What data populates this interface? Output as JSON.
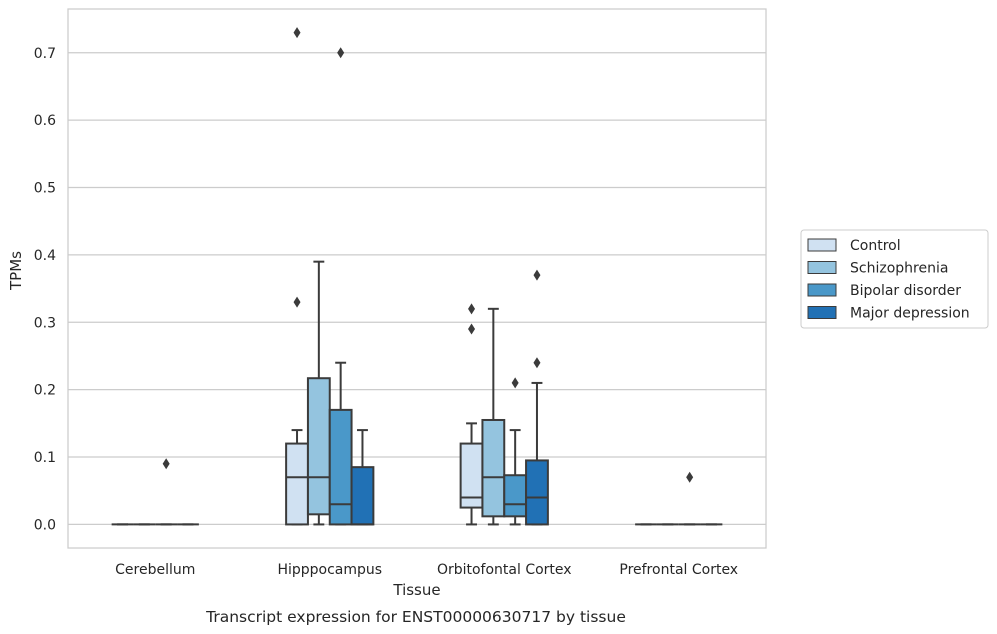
{
  "chart_data": {
    "type": "box",
    "caption": "Transcript expression for ENST00000630717 by tissue",
    "xlabel": "Tissue",
    "ylabel": "TPMs",
    "ylim": [
      -0.035,
      0.765
    ],
    "yticks": [
      0.0,
      0.1,
      0.2,
      0.3,
      0.4,
      0.5,
      0.6,
      0.7
    ],
    "ytick_labels": [
      "0.0",
      "0.1",
      "0.2",
      "0.3",
      "0.4",
      "0.5",
      "0.6",
      "0.7"
    ],
    "grid": "horizontal",
    "legend_position": "right",
    "categories": [
      "Cerebellum",
      "Hipppocampus",
      "Orbitofontal Cortex",
      "Prefrontal Cortex"
    ],
    "series": [
      {
        "name": "Control",
        "color": "#d0e1f2",
        "boxes": [
          {
            "whislo": 0.0,
            "q1": 0.0,
            "med": 0.0,
            "q3": 0.0,
            "whishi": 0.0,
            "fliers": []
          },
          {
            "whislo": 0.0,
            "q1": 0.0,
            "med": 0.07,
            "q3": 0.12,
            "whishi": 0.14,
            "fliers": [
              0.33,
              0.73
            ]
          },
          {
            "whislo": 0.0,
            "q1": 0.025,
            "med": 0.04,
            "q3": 0.12,
            "whishi": 0.15,
            "fliers": [
              0.29,
              0.32
            ]
          },
          {
            "whislo": 0.0,
            "q1": 0.0,
            "med": 0.0,
            "q3": 0.0,
            "whishi": 0.0,
            "fliers": []
          }
        ]
      },
      {
        "name": "Schizophrenia",
        "color": "#94c4df",
        "boxes": [
          {
            "whislo": 0.0,
            "q1": 0.0,
            "med": 0.0,
            "q3": 0.0,
            "whishi": 0.0,
            "fliers": []
          },
          {
            "whislo": 0.0,
            "q1": 0.015,
            "med": 0.07,
            "q3": 0.217,
            "whishi": 0.39,
            "fliers": []
          },
          {
            "whislo": 0.0,
            "q1": 0.012,
            "med": 0.07,
            "q3": 0.155,
            "whishi": 0.32,
            "fliers": []
          },
          {
            "whislo": 0.0,
            "q1": 0.0,
            "med": 0.0,
            "q3": 0.0,
            "whishi": 0.0,
            "fliers": []
          }
        ]
      },
      {
        "name": "Bipolar disorder",
        "color": "#4a98c9",
        "boxes": [
          {
            "whislo": 0.0,
            "q1": 0.0,
            "med": 0.0,
            "q3": 0.0,
            "whishi": 0.0,
            "fliers": [
              0.09
            ]
          },
          {
            "whislo": 0.0,
            "q1": 0.0,
            "med": 0.03,
            "q3": 0.17,
            "whishi": 0.24,
            "fliers": [
              0.7
            ]
          },
          {
            "whislo": 0.0,
            "q1": 0.012,
            "med": 0.03,
            "q3": 0.073,
            "whishi": 0.14,
            "fliers": [
              0.21
            ]
          },
          {
            "whislo": 0.0,
            "q1": 0.0,
            "med": 0.0,
            "q3": 0.0,
            "whishi": 0.0,
            "fliers": [
              0.07
            ]
          }
        ]
      },
      {
        "name": "Major depression",
        "color": "#2171b5",
        "boxes": [
          {
            "whislo": 0.0,
            "q1": 0.0,
            "med": 0.0,
            "q3": 0.0,
            "whishi": 0.0,
            "fliers": []
          },
          {
            "whislo": 0.0,
            "q1": 0.0,
            "med": 0.0,
            "q3": 0.085,
            "whishi": 0.14,
            "fliers": []
          },
          {
            "whislo": 0.0,
            "q1": 0.0,
            "med": 0.04,
            "q3": 0.095,
            "whishi": 0.21,
            "fliers": [
              0.24,
              0.37
            ]
          },
          {
            "whislo": 0.0,
            "q1": 0.0,
            "med": 0.0,
            "q3": 0.0,
            "whishi": 0.0,
            "fliers": []
          }
        ]
      }
    ]
  }
}
